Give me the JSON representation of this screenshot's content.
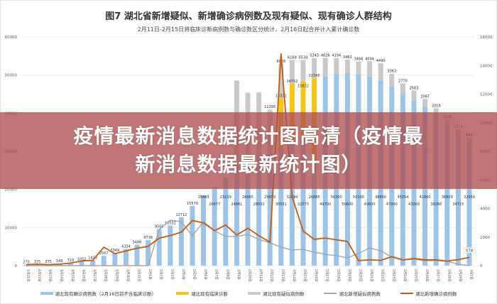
{
  "header": {
    "title": "图7 湖北省新增疑似、新增确诊病例数及现有疑似、现有确诊人群结构",
    "subtitle": "2月11日-2月15日将临床诊断病例数与确诊数区分统计，2月16日起合并计入累计确诊数"
  },
  "banner": {
    "line1": "疫情最新消息数据统计图高清（疫情最",
    "line2": "新消息数据最新统计图）"
  },
  "chart_data": {
    "type": "bar",
    "title": "图7 湖北省新增疑似、新增确诊病例数及现有疑似、现有确诊人群结构",
    "stacked": true,
    "grid": true,
    "legend_position": "bottom",
    "categories": [
      "1月21日",
      "1月22日",
      "1月23日",
      "1月24日",
      "1月25日",
      "1月26日",
      "1月27日",
      "1月28日",
      "1月29日",
      "1月30日",
      "1月31日",
      "2月1日",
      "2月2日",
      "2月3日",
      "2月4日",
      "2月5日",
      "2月6日",
      "2月7日",
      "2月8日",
      "2月9日",
      "2月10日",
      "2月11日",
      "2月12日",
      "2月13日",
      "2月14日",
      "2月15日",
      "2月16日",
      "2月17日",
      "2月18日",
      "2月19日",
      "2月20日",
      "2月21日",
      "2月22日",
      "2月23日",
      "2月24日",
      "2月25日",
      "2月26日",
      "2月27日",
      "2月28日",
      "2月29日",
      "3月1日"
    ],
    "y_left": {
      "range": [
        0,
        60000
      ],
      "ticks": [
        "0",
        "10000",
        "20000",
        "30000",
        "40000",
        "50000",
        "60000"
      ]
    },
    "y_right": {
      "range": [
        0,
        16000
      ],
      "ticks": [
        "0",
        "2000",
        "4000",
        "6000",
        "8000",
        "10000",
        "12000",
        "14000",
        "16000"
      ]
    },
    "series": [
      {
        "name": "湖北现有确诊病例数（2月16日前不含临床诊断）",
        "kind": "bar",
        "axis": "left",
        "color": "#9dc3e6",
        "values": [
          270,
          375,
          375,
          549,
          729,
          1052,
          1423,
          2567,
          3349,
          4334,
          5486,
          6738,
          9565,
          10532,
          12712,
          15679,
          18483,
          20677,
          23139,
          24881,
          26965,
          28532,
          29659,
          30531,
          32994,
          32573,
          26885,
          49700,
          50300,
          50600,
          50100,
          49600,
          48600,
          47000,
          45054,
          43369,
          41660,
          39266,
          36829,
          34715,
          32959
        ]
      },
      {
        "name": "湖北现有临床诊断",
        "kind": "bar",
        "axis": "left",
        "color": "#f5c518",
        "values": [
          0,
          0,
          0,
          0,
          0,
          0,
          0,
          0,
          0,
          0,
          0,
          0,
          0,
          0,
          0,
          0,
          0,
          0,
          0,
          0,
          0,
          0,
          0,
          13332,
          14752,
          15822,
          22345,
          0,
          0,
          0,
          0,
          0,
          0,
          0,
          0,
          0,
          0,
          0,
          0,
          0,
          0
        ]
      },
      {
        "name": "湖北现有疑似病例数",
        "kind": "bar",
        "axis": "left",
        "color": "#c9c9c9",
        "values": [
          0,
          0,
          0,
          0,
          0,
          0,
          0,
          0,
          0,
          0,
          0,
          0,
          0,
          0,
          0,
          0,
          0,
          0,
          0,
          23700,
          18400,
          16900,
          11295,
          9028,
          6169,
          5534,
          5243,
          4826,
          4194,
          3462,
          3456,
          4004,
          4490,
          3363,
          2770,
          2563,
          2067,
          2019,
          1509,
          1171,
          686
        ]
      },
      {
        "name": "湖北新增疑似病例数",
        "kind": "line",
        "axis": "right",
        "color": "#a6a6a6",
        "values": [
          0,
          0,
          0,
          0,
          0,
          0,
          0,
          0,
          0,
          0,
          0,
          0,
          2530,
          3180,
          3080,
          2090,
          3080,
          2430,
          2040,
          2040,
          2190,
          1840,
          1590,
          1290,
          1090,
          1140,
          940,
          790,
          700,
          550,
          850,
          1240,
          1040,
          600,
          400,
          450,
          350,
          350,
          300,
          100,
          0
        ]
      },
      {
        "name": "湖北新增确诊病例数",
        "kind": "line",
        "axis": "right",
        "color": "#c55a11",
        "values": [
          72,
          105,
          69,
          105,
          180,
          323,
          371,
          1291,
          840,
          1032,
          1220,
          1347,
          1921,
          2103,
          2345,
          3156,
          2987,
          2447,
          2841,
          2147,
          2618,
          2097,
          1638,
          14840,
          4823,
          2420,
          1843,
          1933,
          1807,
          1693,
          349,
          411,
          366,
          630,
          398,
          499,
          401,
          409,
          318,
          423,
          578
        ]
      }
    ]
  }
}
